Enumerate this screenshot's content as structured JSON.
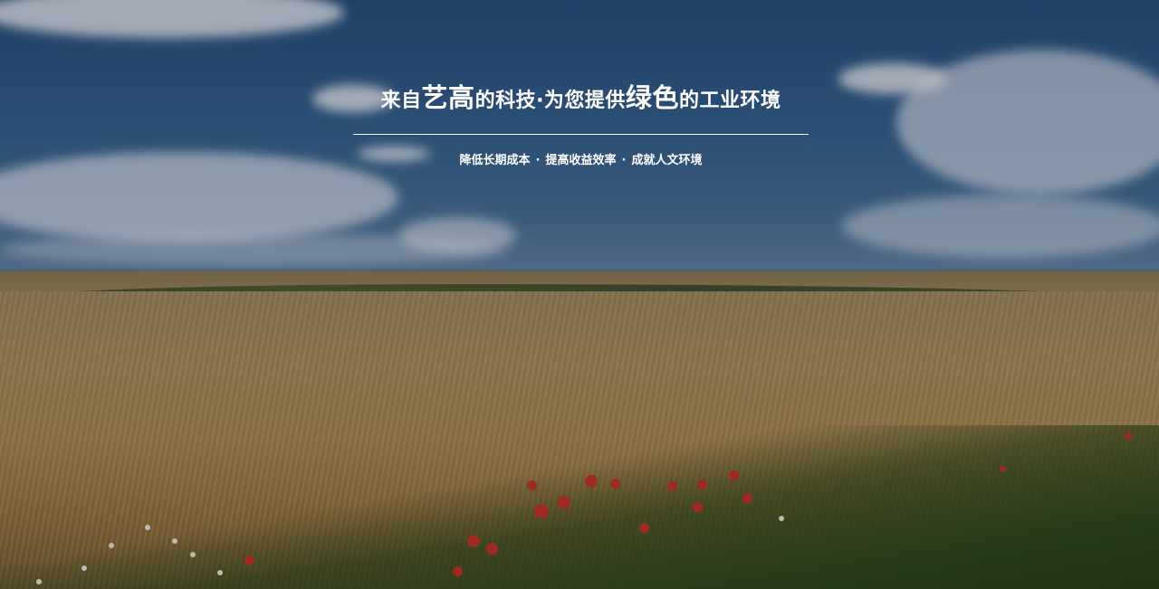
{
  "banner": {
    "headline": {
      "part1": "来自",
      "brand": "艺高",
      "part2": "的科技·为您提供",
      "accent": "绿色",
      "part3": "的工业环境"
    },
    "subline": {
      "item1": "降低长期成本",
      "item2": "提高收益效率",
      "item3": "成就人文环境",
      "separator": "·"
    }
  },
  "colors": {
    "text": "#ffffff",
    "sky": "#2a4f7e",
    "wheat": "#a78751",
    "grass": "#2f4a22",
    "poppy": "#c3342a"
  }
}
